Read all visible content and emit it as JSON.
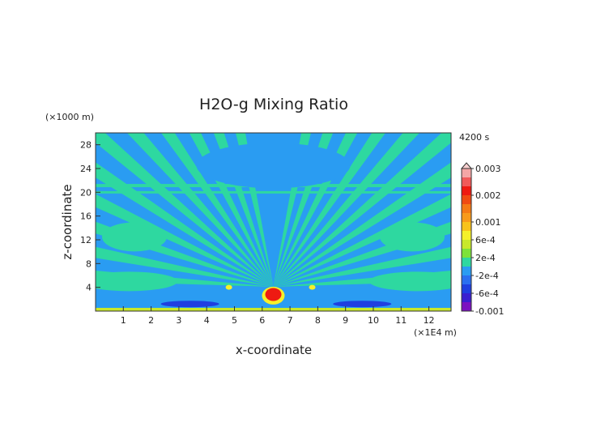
{
  "chart_data": {
    "type": "heatmap",
    "title": "H2O-g Mixing Ratio",
    "time_label": "4200 s",
    "xlabel": "x-coordinate",
    "ylabel": "z-coordinate",
    "x_unit": "(×1E4 m)",
    "y_unit": "(×1000 m)",
    "xlim": [
      0,
      12.8
    ],
    "ylim": [
      0,
      30
    ],
    "x_ticks": [
      1,
      2,
      3,
      4,
      5,
      6,
      7,
      8,
      9,
      10,
      11,
      12
    ],
    "y_ticks": [
      4,
      8,
      12,
      16,
      20,
      24,
      28
    ],
    "colorbar": {
      "levels": [
        {
          "value": -0.001,
          "color": "#7b12c0"
        },
        {
          "value": -0.0008,
          "color": "#3a1fd0"
        },
        {
          "value": -0.0006,
          "color": "#1f3fe0"
        },
        {
          "value": -0.0004,
          "color": "#2a6ff0"
        },
        {
          "value": -0.0002,
          "color": "#2a9cf2"
        },
        {
          "value": 0,
          "color": "#2ed8a0"
        },
        {
          "value": 0.0002,
          "color": "#7de23a"
        },
        {
          "value": 0.0004,
          "color": "#c8e82a"
        },
        {
          "value": 0.0006,
          "color": "#f5f02a"
        },
        {
          "value": 0.0008,
          "color": "#f8c21a"
        },
        {
          "value": 0.001,
          "color": "#f89a1a"
        },
        {
          "value": 0.0012,
          "color": "#f57a14"
        },
        {
          "value": 0.0016,
          "color": "#f04a12"
        },
        {
          "value": 0.002,
          "color": "#ee1a12"
        },
        {
          "value": 0.0024,
          "color": "#f05a5a"
        },
        {
          "value": 0.0028,
          "color": "#f4a6a6"
        },
        {
          "value": 0.003,
          "color": "#f8d0d0"
        }
      ],
      "tick_labels": [
        "0.003",
        "0.002",
        "0.001",
        "6e-4",
        "2e-4",
        "-2e-4",
        "-6e-4",
        "-0.001"
      ]
    }
  }
}
